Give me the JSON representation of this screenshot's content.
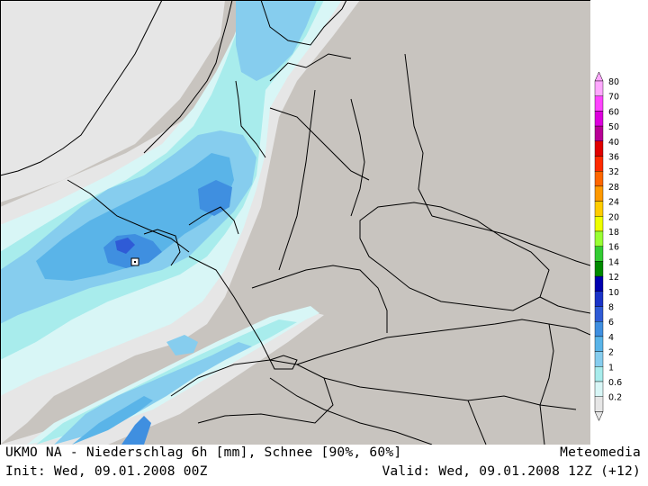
{
  "map": {
    "colors": {
      "land": "#c8c4bf",
      "p02": "#e6e6e6",
      "p06": "#d8f6f6",
      "p1": "#a8ecec",
      "p2": "#86cdee",
      "p4": "#5ab4e8",
      "p6": "#3f8fe0",
      "p8": "#2f5bd6",
      "border": "#000000"
    },
    "marker_icon": "city-marker-icon"
  },
  "legend": {
    "levels": [
      "80",
      "70",
      "60",
      "50",
      "40",
      "36",
      "32",
      "28",
      "24",
      "20",
      "18",
      "16",
      "14",
      "12",
      "10",
      "8",
      "6",
      "4",
      "2",
      "1",
      "0.6",
      "0.2"
    ],
    "colors": [
      "#ffa8ff",
      "#ff44ff",
      "#dd00dd",
      "#b80095",
      "#e00000",
      "#ff2a00",
      "#ff6600",
      "#ff9900",
      "#ffcc00",
      "#eeff00",
      "#99ff33",
      "#33cc33",
      "#008a00",
      "#0000b0",
      "#1a33c8",
      "#2f5bd6",
      "#3f8fe0",
      "#5ab4e8",
      "#86cdee",
      "#a8ecec",
      "#d8f6f6",
      "#e6e6e6"
    ]
  },
  "footer": {
    "title": "UKMO NA - Niederschlag 6h [mm], Schnee [90%, 60%]",
    "brand": "Meteomedia",
    "init": "Init: Wed, 09.01.2008 00Z",
    "valid": "Valid: Wed, 09.01.2008 12Z (+12)"
  }
}
